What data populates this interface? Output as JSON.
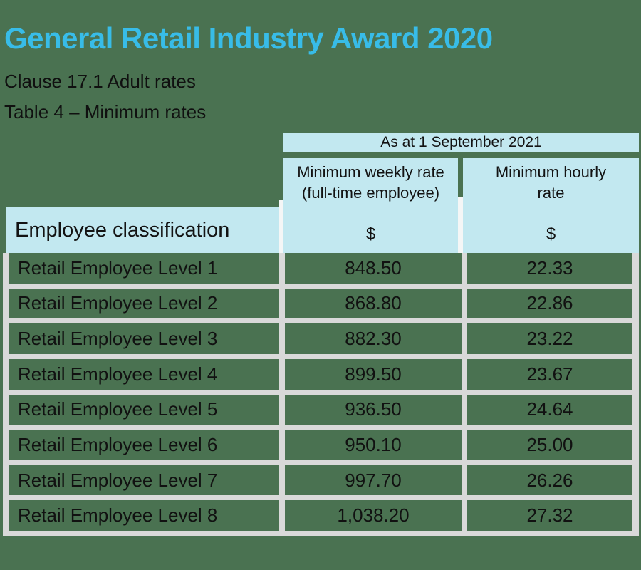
{
  "page": {
    "title": "General Retail Industry Award 2020",
    "clause_subtitle": "Clause 17.1 Adult rates",
    "table_subtitle": "Table 4 – Minimum rates"
  },
  "table": {
    "date_header": "As at 1 September 2021",
    "classification_header": "Employee classification",
    "weekly_header_line1": "Minimum weekly rate",
    "weekly_header_line2": "(full-time employee)",
    "hourly_header_line1": "Minimum hourly",
    "hourly_header_line2": "rate",
    "currency_symbol": "$",
    "rows": [
      {
        "classification": "Retail Employee Level 1",
        "weekly": "848.50",
        "hourly": "22.33"
      },
      {
        "classification": "Retail Employee Level 2",
        "weekly": "868.80",
        "hourly": "22.86"
      },
      {
        "classification": "Retail Employee Level 3",
        "weekly": "882.30",
        "hourly": "23.22"
      },
      {
        "classification": "Retail Employee Level 4",
        "weekly": "899.50",
        "hourly": "23.67"
      },
      {
        "classification": "Retail Employee Level 5",
        "weekly": "936.50",
        "hourly": "24.64"
      },
      {
        "classification": "Retail Employee Level 6",
        "weekly": "950.10",
        "hourly": "25.00"
      },
      {
        "classification": "Retail Employee Level 7",
        "weekly": "997.70",
        "hourly": "26.26"
      },
      {
        "classification": "Retail Employee Level 8",
        "weekly": "1,038.20",
        "hourly": "27.32"
      }
    ]
  },
  "colors": {
    "background_green": "#4a7251",
    "header_fill_blue": "#c2e8f0",
    "title_cyan": "#38bce8",
    "gridline_gray": "#d9d9d9",
    "text_black": "#111111"
  }
}
